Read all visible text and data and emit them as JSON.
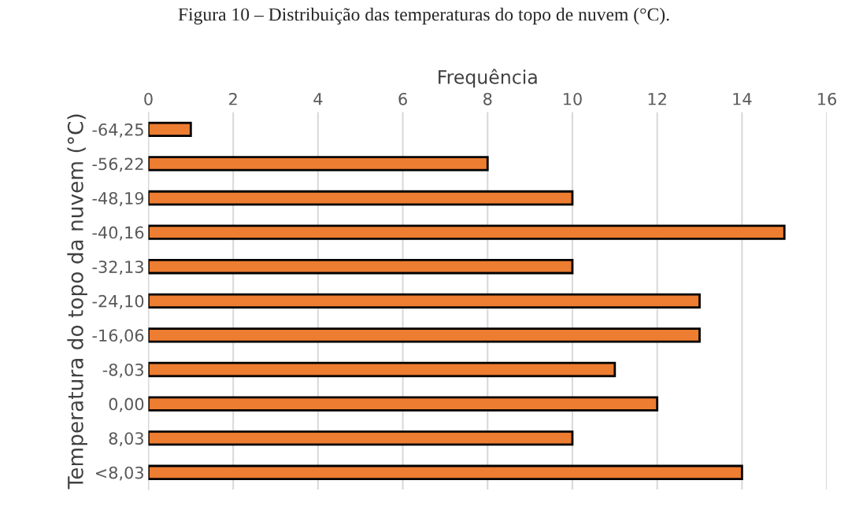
{
  "chart_data": {
    "type": "bar",
    "orientation": "horizontal",
    "title": "Figura 10 – Distribuição das temperaturas do topo de nuvem (°C).",
    "xlabel": "Frequência",
    "ylabel": "Temperatura do topo da nuvem (°C)",
    "categories": [
      "-64,25",
      "-56,22",
      "-48,19",
      "-40,16",
      "-32,13",
      "-24,10",
      "-16,06",
      "-8,03",
      "0,00",
      "8,03",
      "<8,03"
    ],
    "values": [
      1,
      8,
      10,
      15,
      10,
      13,
      13,
      11,
      12,
      10,
      14
    ],
    "color": "#ed7d31",
    "xlim": [
      0,
      16
    ],
    "xticks": [
      0,
      2,
      4,
      6,
      8,
      10,
      12,
      14,
      16
    ],
    "grid": "x",
    "legend": false
  }
}
